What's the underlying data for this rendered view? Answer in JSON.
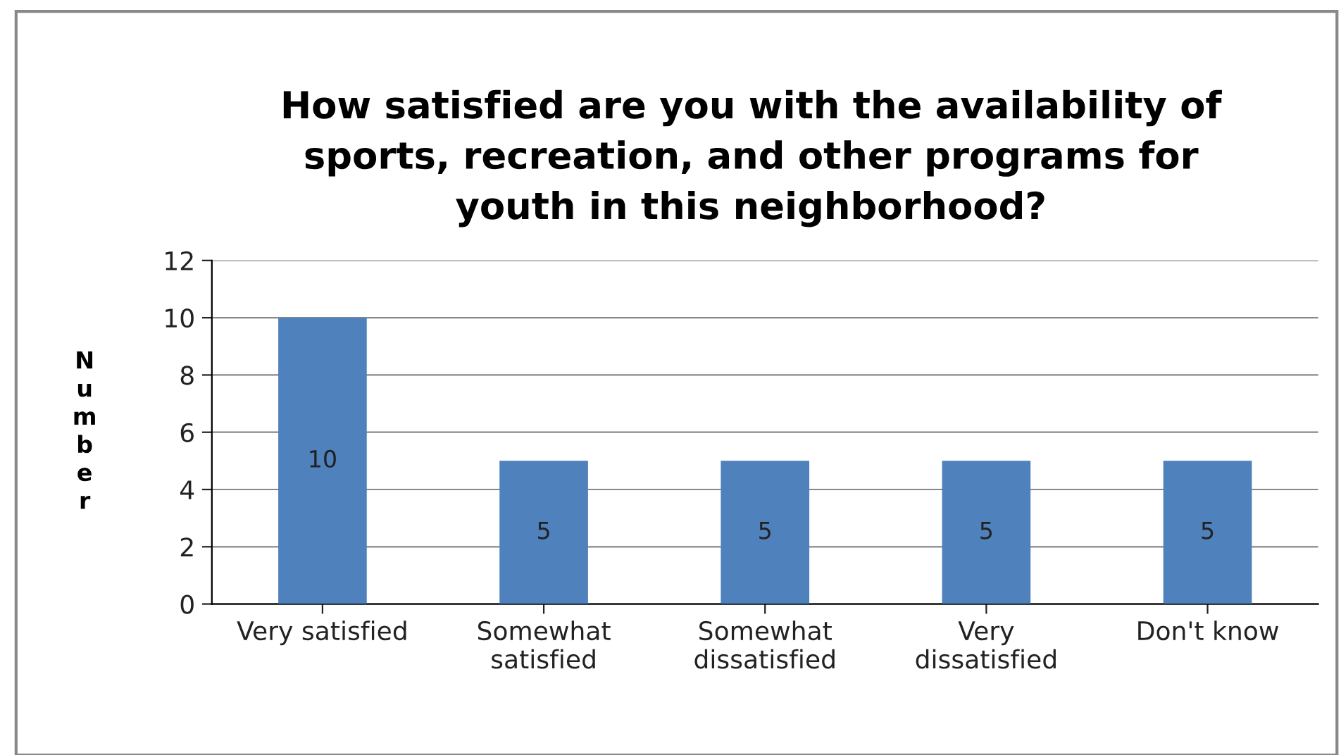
{
  "chart_data": {
    "type": "bar",
    "title": "How satisfied are you with the availability of\nsports, recreation, and other programs for\nyouth in this neighborhood?",
    "ylabel": "Number",
    "categories": [
      "Very satisfied",
      "Somewhat\nsatisfied",
      "Somewhat\ndissatisfied",
      "Very\ndissatisfied",
      "Don't know"
    ],
    "values": [
      10,
      5,
      5,
      5,
      5
    ],
    "color": "#4f81bd",
    "data_labels": true,
    "ylim": [
      0,
      12
    ],
    "yticks": [
      0,
      2,
      4,
      6,
      8,
      10,
      12
    ],
    "grid": "y",
    "legend": false
  }
}
